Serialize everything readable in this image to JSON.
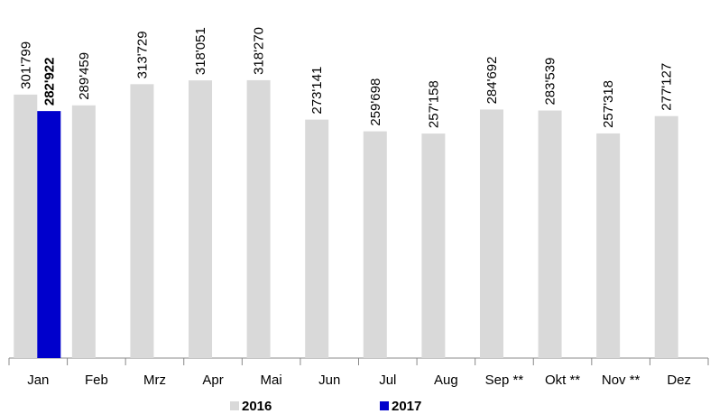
{
  "chart_data": {
    "type": "bar",
    "categories": [
      "Jan",
      "Feb",
      "Mrz",
      "Apr",
      "Mai",
      "Jun",
      "Jul",
      "Aug",
      "Sep **",
      "Okt **",
      "Nov **",
      "Dez"
    ],
    "series": [
      {
        "name": "2016",
        "color": "#d9d9d9",
        "values": [
          301799,
          289459,
          313729,
          318051,
          318270,
          273141,
          259698,
          257158,
          284692,
          283539,
          257318,
          277127
        ],
        "value_labels": [
          "301'799",
          "289'459",
          "313'729",
          "318'051",
          "318'270",
          "273'141",
          "259'698",
          "257'158",
          "284'692",
          "283'539",
          "257'318",
          "277'127"
        ]
      },
      {
        "name": "2017",
        "color": "#0000cc",
        "values": [
          282922,
          null,
          null,
          null,
          null,
          null,
          null,
          null,
          null,
          null,
          null,
          null
        ],
        "value_labels": [
          "282'922",
          null,
          null,
          null,
          null,
          null,
          null,
          null,
          null,
          null,
          null,
          null
        ]
      }
    ]
  }
}
